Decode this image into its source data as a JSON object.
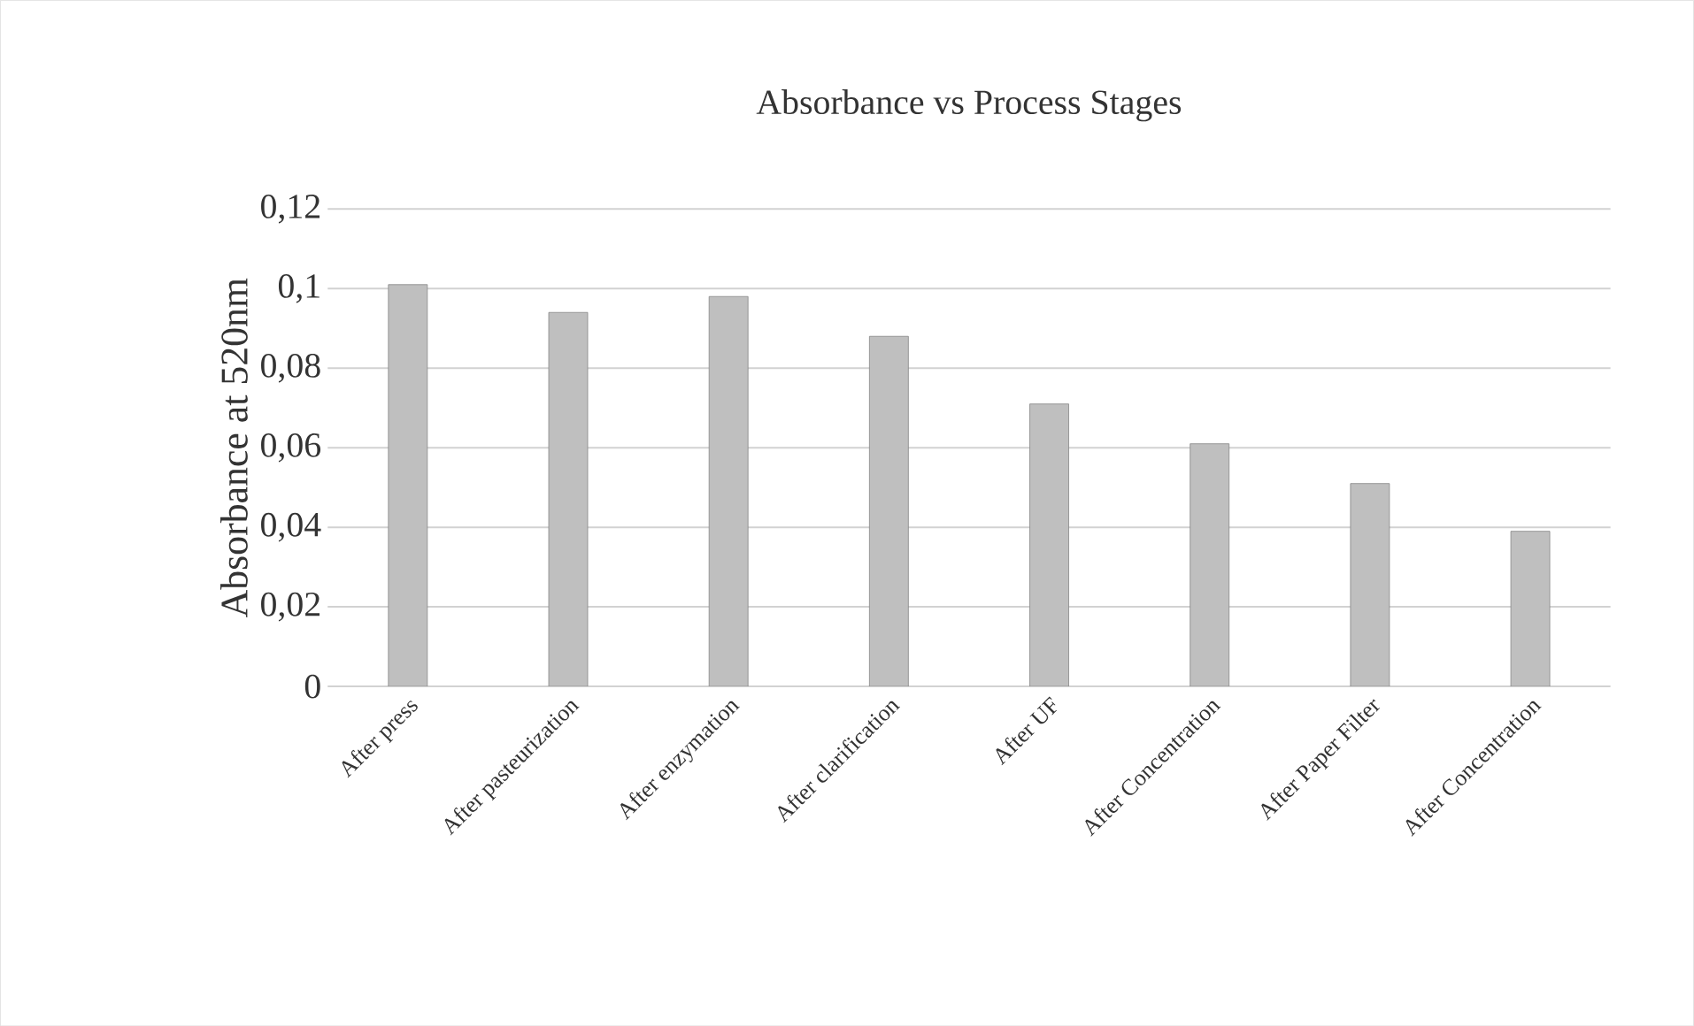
{
  "chart_data": {
    "type": "bar",
    "title": "Absorbance vs Process Stages",
    "ylabel": "Absorbance at 520nm",
    "categories": [
      "After press",
      "After pasteurization",
      "After enzymation",
      "After clarification",
      "After UF",
      "After Concentration",
      "After Paper Filter",
      "After Concentration"
    ],
    "values": [
      0.101,
      0.094,
      0.098,
      0.088,
      0.071,
      0.061,
      0.051,
      0.039
    ],
    "color": "#bfbfbf",
    "ylim": [
      0,
      0.12
    ],
    "yticks": [
      {
        "value": 0,
        "label": "0"
      },
      {
        "value": 0.02,
        "label": "0,02"
      },
      {
        "value": 0.04,
        "label": "0,04"
      },
      {
        "value": 0.06,
        "label": "0,06"
      },
      {
        "value": 0.08,
        "label": "0,08"
      },
      {
        "value": 0.1,
        "label": "0,1"
      },
      {
        "value": 0.12,
        "label": "0,12"
      }
    ],
    "grid": "y"
  }
}
